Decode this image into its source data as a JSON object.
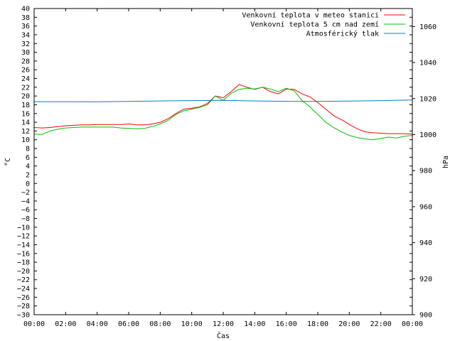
{
  "chart_data": {
    "type": "line",
    "xlabel": "Čas",
    "ylabel": "°C",
    "y2label": "hPa",
    "xlim": [
      0,
      24
    ],
    "ylim": [
      -30,
      40
    ],
    "y2lim": [
      900,
      1070
    ],
    "x_ticks": [
      "00:00",
      "02:00",
      "04:00",
      "06:00",
      "08:00",
      "10:00",
      "12:00",
      "14:00",
      "16:00",
      "18:00",
      "20:00",
      "22:00",
      "00:00"
    ],
    "y_ticks": [
      40,
      38,
      36,
      34,
      32,
      30,
      28,
      26,
      24,
      22,
      20,
      18,
      16,
      14,
      12,
      10,
      8,
      6,
      4,
      2,
      0,
      -2,
      -4,
      -6,
      -8,
      -10,
      -12,
      -14,
      -16,
      -18,
      -20,
      -22,
      -24,
      -26,
      -28,
      -30
    ],
    "y2_ticks": [
      1060,
      1040,
      1020,
      1000,
      980,
      960,
      940,
      920,
      900
    ],
    "grid": false,
    "legend_position": "top-right",
    "series": [
      {
        "name": "Venkovní teplota v meteo stanici",
        "color": "#ff0000",
        "axis": "y",
        "x": [
          0,
          0.5,
          1,
          1.5,
          2,
          2.5,
          3,
          3.5,
          4,
          4.5,
          5,
          5.5,
          6,
          6.5,
          7,
          7.5,
          8,
          8.5,
          9,
          9.5,
          10,
          10.5,
          11,
          11.5,
          12,
          12.5,
          13,
          13.5,
          14,
          14.5,
          15,
          15.5,
          16,
          16.5,
          17,
          17.5,
          18,
          18.5,
          19,
          19.5,
          20,
          20.5,
          21,
          21.5,
          22,
          22.5,
          23,
          23.5,
          24
        ],
        "values": [
          12.8,
          12.7,
          12.8,
          13.0,
          13.2,
          13.3,
          13.4,
          13.4,
          13.5,
          13.5,
          13.5,
          13.5,
          13.6,
          13.4,
          13.4,
          13.6,
          14.0,
          14.8,
          16.0,
          17.0,
          17.2,
          17.5,
          18.3,
          20.0,
          19.6,
          21.0,
          22.6,
          22.0,
          21.5,
          22.0,
          21.0,
          20.5,
          21.6,
          21.5,
          20.5,
          19.8,
          18.5,
          17.0,
          15.5,
          14.6,
          13.5,
          12.5,
          11.8,
          11.6,
          11.5,
          11.4,
          11.4,
          11.4,
          11.3
        ]
      },
      {
        "name": "Venkovní teplota 5 cm nad zemí",
        "color": "#00c000",
        "axis": "y",
        "x": [
          0,
          0.5,
          1,
          1.5,
          2,
          2.5,
          3,
          3.5,
          4,
          4.5,
          5,
          5.5,
          6,
          6.5,
          7,
          7.5,
          8,
          8.5,
          9,
          9.5,
          10,
          10.5,
          11,
          11.5,
          12,
          12.5,
          13,
          13.5,
          14,
          14.5,
          15,
          15.5,
          16,
          16.5,
          17,
          17.5,
          18,
          18.5,
          19,
          19.5,
          20,
          20.5,
          21,
          21.5,
          22,
          22.5,
          23,
          23.5,
          24
        ],
        "values": [
          11.3,
          11.2,
          12.0,
          12.4,
          12.7,
          12.8,
          12.9,
          12.9,
          12.9,
          12.9,
          12.9,
          12.7,
          12.6,
          12.5,
          12.6,
          13.0,
          13.6,
          14.4,
          15.8,
          16.6,
          17.0,
          17.4,
          18.0,
          20.0,
          19.0,
          20.6,
          21.5,
          21.8,
          21.6,
          22.0,
          21.6,
          21.0,
          21.8,
          21.2,
          19.0,
          17.5,
          15.8,
          14.0,
          12.8,
          11.8,
          11.0,
          10.5,
          10.2,
          10.0,
          10.3,
          10.6,
          10.4,
          10.8,
          11.0
        ]
      },
      {
        "name": "Atmosférický tlak",
        "color": "#0080c0",
        "axis": "y2",
        "x": [
          0,
          2,
          4,
          6,
          8,
          10,
          12,
          14,
          16,
          18,
          20,
          22,
          24
        ],
        "values": [
          1018.3,
          1018.3,
          1018.2,
          1018.4,
          1018.7,
          1018.9,
          1019.0,
          1018.7,
          1018.5,
          1018.4,
          1018.6,
          1018.9,
          1019.2
        ]
      }
    ]
  }
}
